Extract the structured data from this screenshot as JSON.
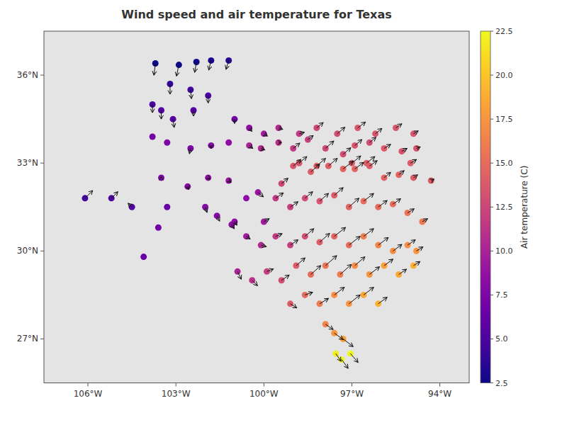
{
  "chart_data": {
    "type": "scatter",
    "title": "Wind speed and air temperature for Texas",
    "color": "plasma",
    "color_label": "Air temperature (C)",
    "color_lim": [
      2.5,
      22.5
    ],
    "color_ticks": [
      2.5,
      {
        "value": 5,
        "label": "5.0"
      },
      7.5,
      {
        "value": 10,
        "label": "10.0"
      },
      12.5,
      {
        "value": 15,
        "label": "15.0"
      },
      17.5,
      {
        "value": 20,
        "label": "20.0"
      },
      22.5
    ],
    "xlim": [
      -107.5,
      -93.0
    ],
    "ylim": [
      25.5,
      37.5
    ],
    "xticks": [
      {
        "value": -106,
        "label": "106°W"
      },
      {
        "value": -103,
        "label": "103°W"
      },
      {
        "value": -100,
        "label": "100°W"
      },
      {
        "value": -97,
        "label": "97°W"
      },
      {
        "value": -94,
        "label": "94°W"
      }
    ],
    "yticks": [
      {
        "value": 27,
        "label": "27°N"
      },
      {
        "value": 30,
        "label": "30°N"
      },
      {
        "value": 33,
        "label": "33°N"
      },
      {
        "value": 36,
        "label": "36°N"
      }
    ],
    "grid": false,
    "x": [
      -103.7,
      -102.9,
      -102.3,
      -101.8,
      -101.2,
      -103.2,
      -102.5,
      -101.9,
      -103.5,
      -103.1,
      -102.4,
      -103.8,
      -103.3,
      -102.5,
      -101.8,
      -101.2,
      -103.5,
      -102.6,
      -101.9,
      -101.2,
      -100.5,
      -100.1,
      -99.5,
      -100.2,
      -99.4,
      -99.0,
      -98.5,
      -97.9,
      -97.3,
      -96.9,
      -96.4,
      -95.9,
      -95.3,
      -94.8,
      -99.0,
      -98.4,
      -97.8,
      -97.3,
      -96.9,
      -96.4,
      -95.9,
      -95.4,
      -94.9,
      -94.3,
      -99.6,
      -99.1,
      -98.6,
      -98.1,
      -97.6,
      -97.1,
      -96.6,
      -96.1,
      -95.6,
      -95.1,
      -94.6,
      -101.6,
      -101.1,
      -100.6,
      -100.1,
      -100.6,
      -103.6,
      -104.1,
      -99.6,
      -99.1,
      -98.6,
      -98.1,
      -97.6,
      -97.1,
      -96.6,
      -96.1,
      -95.6,
      -95.1,
      -94.8,
      -100.9,
      -100.4,
      -99.9,
      -99.4,
      -98.9,
      -98.4,
      -97.9,
      -97.4,
      -96.9,
      -96.4,
      -95.9,
      -95.4,
      -94.9,
      -99.1,
      -98.6,
      -98.1,
      -97.6,
      -97.1,
      -96.6,
      -96.1,
      -97.9,
      -97.6,
      -97.3,
      -97.05,
      -97.35,
      -97.55,
      -106.1,
      -105.2,
      -104.5,
      -103.3,
      -102.0,
      -101.0,
      -98.8,
      -98.2,
      -100.0,
      -103.8,
      -101.0,
      -100.5,
      -100.0,
      -99.5,
      -98.8,
      -98.2,
      -97.5,
      -96.8,
      -96.2,
      -95.5,
      -94.9,
      -97.0,
      -96.5,
      -95.0
    ],
    "y": [
      36.4,
      36.35,
      36.45,
      36.5,
      36.5,
      35.7,
      35.5,
      35.3,
      34.8,
      34.5,
      34.8,
      33.9,
      33.7,
      33.5,
      33.6,
      33.7,
      32.5,
      32.2,
      32.5,
      32.4,
      33.6,
      33.5,
      33.7,
      32.0,
      32.3,
      33.5,
      33.8,
      33.5,
      33.3,
      33.6,
      33.7,
      33.5,
      33.4,
      33.5,
      32.9,
      32.7,
      32.9,
      32.8,
      32.8,
      32.9,
      32.5,
      32.6,
      32.5,
      32.4,
      31.8,
      31.5,
      31.8,
      31.7,
      31.9,
      31.5,
      31.7,
      31.5,
      31.6,
      31.3,
      31.0,
      31.2,
      30.9,
      30.5,
      30.2,
      31.8,
      30.8,
      29.8,
      30.5,
      30.2,
      30.5,
      30.3,
      30.5,
      30.2,
      30.5,
      30.2,
      30.0,
      30.2,
      30.0,
      29.3,
      29.0,
      29.3,
      29.0,
      29.5,
      29.2,
      29.5,
      29.2,
      29.5,
      29.2,
      29.5,
      29.2,
      29.5,
      28.2,
      28.5,
      28.2,
      28.5,
      28.2,
      28.5,
      28.2,
      27.5,
      27.2,
      27.0,
      26.5,
      26.3,
      26.5,
      31.8,
      31.8,
      31.5,
      31.5,
      31.5,
      31.0,
      33.0,
      32.9,
      31.0,
      35.0,
      34.5,
      34.2,
      34.0,
      34.2,
      34.0,
      34.2,
      34.0,
      34.2,
      34.0,
      34.2,
      34.0,
      33.0,
      33.0,
      33.0
    ],
    "temperature": [
      2.5,
      2.5,
      2.5,
      3.0,
      3.5,
      4.0,
      4.5,
      5.0,
      5.5,
      5.5,
      5.5,
      7.0,
      7.5,
      7.5,
      8.0,
      8.5,
      7.5,
      8.0,
      8.5,
      9.0,
      10.0,
      10.5,
      11.0,
      9.0,
      12.5,
      11.5,
      12.0,
      12.5,
      13.0,
      13.5,
      13.0,
      14.0,
      13.5,
      13.5,
      13.5,
      14.0,
      14.0,
      14.5,
      14.5,
      14.0,
      14.5,
      14.5,
      14.0,
      14.0,
      11.5,
      12.0,
      13.0,
      13.5,
      14.0,
      14.5,
      15.0,
      15.0,
      15.0,
      15.5,
      16.0,
      8.0,
      8.5,
      9.5,
      10.5,
      8.5,
      7.0,
      6.5,
      11.5,
      12.0,
      13.0,
      14.0,
      14.5,
      15.0,
      16.0,
      16.5,
      17.0,
      17.0,
      17.5,
      10.0,
      11.0,
      12.0,
      13.0,
      14.0,
      15.0,
      15.5,
      16.0,
      17.0,
      17.5,
      18.0,
      18.5,
      19.0,
      14.0,
      15.0,
      16.0,
      17.0,
      17.5,
      18.5,
      19.0,
      16.5,
      17.5,
      18.0,
      22.5,
      22.5,
      22.0,
      4.5,
      5.0,
      5.5,
      6.5,
      8.0,
      8.5,
      13.5,
      14.0,
      9.5,
      5.0,
      7.0,
      8.5,
      9.5,
      10.5,
      11.5,
      12.5,
      13.0,
      13.5,
      13.5,
      13.5,
      13.5,
      14.0,
      14.0,
      14.0
    ],
    "u": [
      -0.05,
      -0.08,
      -0.06,
      -0.08,
      -0.09,
      0.0,
      0.03,
      0.0,
      0.0,
      0.04,
      0.0,
      0.0,
      0.0,
      -0.04,
      0.0,
      0.0,
      0.0,
      0.04,
      0.06,
      0.08,
      0.12,
      0.13,
      0.1,
      0.18,
      0.22,
      0.22,
      0.18,
      0.28,
      0.26,
      0.24,
      0.22,
      0.22,
      0.18,
      0.13,
      0.26,
      0.3,
      0.3,
      0.34,
      0.3,
      0.26,
      0.22,
      0.18,
      0.14,
      0.1,
      0.26,
      0.26,
      0.26,
      0.3,
      0.3,
      0.34,
      0.34,
      0.3,
      0.26,
      0.22,
      0.18,
      0.09,
      0.09,
      0.13,
      0.18,
      0.0,
      0.0,
      0.0,
      0.22,
      0.26,
      0.3,
      0.34,
      0.38,
      0.38,
      0.34,
      0.34,
      0.3,
      0.26,
      0.22,
      0.13,
      0.18,
      0.22,
      0.26,
      0.3,
      0.34,
      0.38,
      0.38,
      0.34,
      0.34,
      0.3,
      0.26,
      0.22,
      0.22,
      0.26,
      0.3,
      0.34,
      0.38,
      0.34,
      0.3,
      0.26,
      0.3,
      0.34,
      0.26,
      0.22,
      0.18,
      0.26,
      0.22,
      -0.13,
      0.0,
      0.06,
      0.08,
      0.26,
      0.3,
      0.18,
      0.0,
      0.0,
      0.09,
      0.12,
      0.14,
      0.18,
      0.22,
      0.26,
      0.26,
      0.22,
      0.2,
      0.16,
      0.3,
      0.28,
      0.2
    ],
    "v": [
      -0.4,
      -0.38,
      -0.35,
      -0.32,
      -0.3,
      -0.35,
      -0.3,
      -0.25,
      -0.3,
      -0.28,
      -0.2,
      0.0,
      0.0,
      -0.18,
      -0.1,
      0.0,
      0.04,
      -0.1,
      -0.06,
      -0.05,
      -0.1,
      -0.05,
      0.0,
      -0.15,
      0.18,
      0.18,
      0.14,
      0.25,
      0.22,
      0.2,
      0.18,
      0.14,
      0.1,
      0.05,
      0.22,
      0.26,
      0.26,
      0.26,
      0.22,
      0.18,
      0.18,
      0.14,
      0.1,
      0.05,
      0.18,
      0.18,
      0.22,
      0.26,
      0.26,
      0.3,
      0.26,
      0.22,
      0.18,
      0.14,
      0.1,
      -0.18,
      -0.14,
      -0.09,
      -0.05,
      0.0,
      0.0,
      0.0,
      0.09,
      0.18,
      0.26,
      0.3,
      0.3,
      0.3,
      0.26,
      0.26,
      0.22,
      0.18,
      0.14,
      -0.26,
      -0.18,
      0.09,
      0.18,
      0.26,
      0.3,
      0.34,
      0.34,
      0.3,
      0.26,
      0.22,
      0.18,
      0.14,
      -0.14,
      0.09,
      0.18,
      0.26,
      0.3,
      0.26,
      0.22,
      -0.18,
      -0.22,
      -0.26,
      -0.3,
      -0.3,
      -0.26,
      0.26,
      0.22,
      0.13,
      0.0,
      -0.18,
      -0.12,
      0.22,
      0.26,
      0.1,
      -0.28,
      -0.15,
      -0.12,
      -0.08,
      -0.05,
      0.05,
      0.18,
      0.22,
      0.2,
      0.18,
      0.14,
      0.1,
      0.24,
      0.22,
      0.12
    ]
  }
}
